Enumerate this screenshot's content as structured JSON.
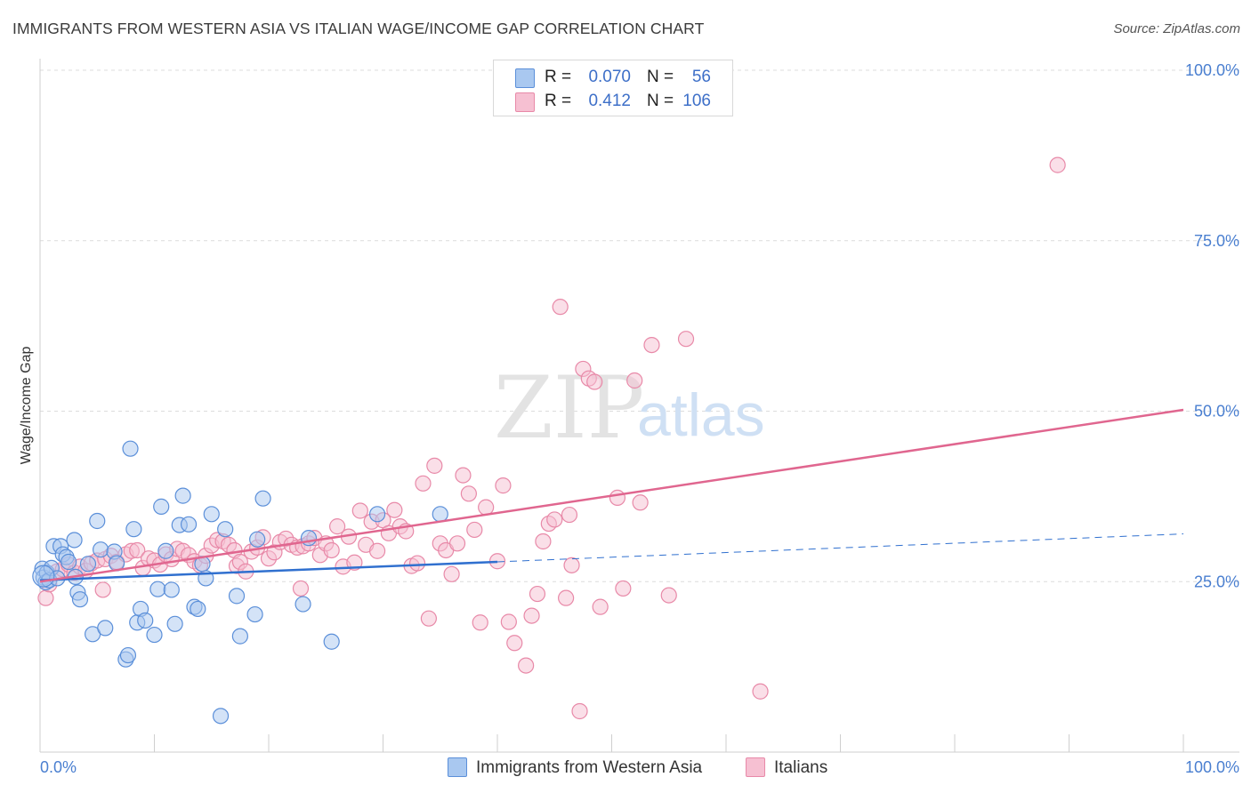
{
  "title": "IMMIGRANTS FROM WESTERN ASIA VS ITALIAN WAGE/INCOME GAP CORRELATION CHART",
  "source": "Source: ZipAtlas.com",
  "watermark": {
    "zip": "ZIP",
    "atlas": "atlas"
  },
  "legend": {
    "rows": [
      {
        "r_label": "R =",
        "r_value": "0.070",
        "n_label": "N =",
        "n_value": "56"
      },
      {
        "r_label": "R =",
        "r_value": "0.412",
        "n_label": "N =",
        "n_value": "106"
      }
    ]
  },
  "bottom_legend": [
    "Immigrants from Western Asia",
    "Italians"
  ],
  "colors": {
    "blue_fill": "#a9c8f0",
    "blue_stroke": "#5b8fd9",
    "blue_line": "#3070cf",
    "pink_fill": "#f6c0d2",
    "pink_stroke": "#e889a8",
    "pink_line": "#e0668f",
    "tick_text": "#4a7fd0",
    "grid": "#dcdcdc"
  },
  "chart_data": {
    "type": "scatter",
    "title": "IMMIGRANTS FROM WESTERN ASIA VS ITALIAN WAGE/INCOME GAP CORRELATION CHART",
    "xlabel": "",
    "ylabel": "Wage/Income Gap",
    "xlim": [
      0,
      100
    ],
    "ylim": [
      0,
      100
    ],
    "x_ticks": [
      "0.0%",
      "100.0%"
    ],
    "y_ticks": [
      "25.0%",
      "50.0%",
      "75.0%",
      "100.0%"
    ],
    "y_tick_values": [
      25,
      50,
      75,
      100
    ],
    "grid": "horizontal dashed",
    "legend_position": "top-center",
    "series": [
      {
        "name": "Immigrants from Western Asia",
        "r": 0.07,
        "n": 56,
        "trend": {
          "x0": 0,
          "y0": 25.2,
          "x1": 40,
          "y1": 27.9,
          "dashed_to_x": 100,
          "dashed_to_y": 32.0
        },
        "points": [
          [
            0.2,
            26.9
          ],
          [
            0.3,
            25.6
          ],
          [
            0.5,
            24.9
          ],
          [
            0.6,
            26.3
          ],
          [
            0.8,
            25.2
          ],
          [
            1.0,
            27.0
          ],
          [
            1.2,
            30.2
          ],
          [
            1.5,
            25.5
          ],
          [
            1.8,
            30.2
          ],
          [
            2.0,
            29.0
          ],
          [
            2.3,
            28.6
          ],
          [
            2.5,
            27.9
          ],
          [
            3.0,
            31.1
          ],
          [
            3.1,
            25.7
          ],
          [
            3.3,
            23.4
          ],
          [
            3.5,
            22.4
          ],
          [
            4.2,
            27.6
          ],
          [
            4.6,
            17.3
          ],
          [
            5.0,
            33.9
          ],
          [
            5.3,
            29.7
          ],
          [
            5.7,
            18.2
          ],
          [
            6.5,
            29.4
          ],
          [
            6.7,
            27.7
          ],
          [
            7.5,
            13.6
          ],
          [
            7.7,
            14.2
          ],
          [
            7.9,
            44.5
          ],
          [
            8.2,
            32.7
          ],
          [
            8.5,
            19.0
          ],
          [
            8.8,
            21.0
          ],
          [
            9.2,
            19.3
          ],
          [
            10.0,
            17.2
          ],
          [
            10.3,
            23.9
          ],
          [
            10.6,
            36.0
          ],
          [
            11.0,
            29.5
          ],
          [
            11.5,
            23.8
          ],
          [
            11.8,
            18.8
          ],
          [
            12.2,
            33.3
          ],
          [
            12.5,
            37.6
          ],
          [
            13.0,
            33.4
          ],
          [
            13.5,
            21.3
          ],
          [
            13.8,
            21.0
          ],
          [
            14.2,
            27.6
          ],
          [
            14.5,
            25.5
          ],
          [
            15.0,
            34.9
          ],
          [
            15.8,
            5.3
          ],
          [
            16.2,
            32.7
          ],
          [
            17.2,
            22.9
          ],
          [
            17.5,
            17.0
          ],
          [
            18.8,
            20.2
          ],
          [
            19.0,
            31.2
          ],
          [
            19.5,
            37.2
          ],
          [
            23.0,
            21.7
          ],
          [
            23.5,
            31.4
          ],
          [
            25.5,
            16.2
          ],
          [
            29.5,
            34.9
          ],
          [
            35.0,
            34.9
          ]
        ]
      },
      {
        "name": "Italians",
        "r": 0.412,
        "n": 106,
        "trend": {
          "x0": 0,
          "y0": 25.0,
          "x1": 100,
          "y1": 50.2
        },
        "points": [
          [
            0.5,
            22.6
          ],
          [
            0.8,
            24.6
          ],
          [
            1.5,
            26.5
          ],
          [
            2.0,
            26.8
          ],
          [
            2.5,
            27.5
          ],
          [
            3.0,
            26.3
          ],
          [
            3.5,
            27.2
          ],
          [
            4.0,
            26.6
          ],
          [
            4.5,
            27.7
          ],
          [
            5.0,
            28.1
          ],
          [
            5.5,
            23.8
          ],
          [
            5.7,
            28.3
          ],
          [
            6.2,
            28.8
          ],
          [
            6.7,
            27.9
          ],
          [
            7.5,
            29.0
          ],
          [
            8.0,
            29.5
          ],
          [
            8.5,
            29.6
          ],
          [
            9.0,
            27.0
          ],
          [
            9.5,
            28.4
          ],
          [
            10.0,
            28.1
          ],
          [
            10.5,
            27.5
          ],
          [
            11.0,
            29.0
          ],
          [
            11.5,
            28.3
          ],
          [
            12.0,
            29.8
          ],
          [
            12.5,
            29.5
          ],
          [
            13.0,
            28.9
          ],
          [
            13.5,
            28.0
          ],
          [
            14.0,
            27.4
          ],
          [
            14.5,
            28.8
          ],
          [
            15.0,
            30.3
          ],
          [
            15.5,
            31.1
          ],
          [
            16.0,
            30.9
          ],
          [
            16.5,
            30.4
          ],
          [
            17.0,
            29.6
          ],
          [
            17.2,
            27.3
          ],
          [
            17.5,
            27.9
          ],
          [
            18.0,
            26.5
          ],
          [
            18.5,
            29.4
          ],
          [
            19.0,
            30.0
          ],
          [
            19.5,
            31.5
          ],
          [
            20.0,
            28.4
          ],
          [
            20.5,
            29.3
          ],
          [
            21.0,
            30.8
          ],
          [
            21.5,
            31.3
          ],
          [
            22.0,
            30.4
          ],
          [
            22.5,
            30.0
          ],
          [
            22.8,
            24.0
          ],
          [
            23.0,
            30.2
          ],
          [
            23.5,
            30.6
          ],
          [
            24.0,
            31.4
          ],
          [
            24.5,
            28.9
          ],
          [
            25.0,
            30.6
          ],
          [
            25.5,
            29.6
          ],
          [
            26.0,
            33.1
          ],
          [
            26.5,
            27.2
          ],
          [
            27.0,
            31.6
          ],
          [
            27.5,
            27.8
          ],
          [
            28.0,
            35.4
          ],
          [
            28.5,
            30.4
          ],
          [
            29.0,
            33.8
          ],
          [
            29.5,
            29.5
          ],
          [
            30.0,
            34.0
          ],
          [
            30.5,
            32.1
          ],
          [
            31.0,
            35.5
          ],
          [
            31.5,
            33.1
          ],
          [
            32.0,
            32.4
          ],
          [
            32.5,
            27.3
          ],
          [
            33.0,
            27.7
          ],
          [
            33.5,
            39.4
          ],
          [
            34.0,
            19.6
          ],
          [
            34.5,
            42.0
          ],
          [
            35.0,
            30.6
          ],
          [
            35.5,
            29.6
          ],
          [
            36.0,
            26.1
          ],
          [
            36.5,
            30.6
          ],
          [
            37.0,
            40.6
          ],
          [
            37.5,
            37.9
          ],
          [
            38.0,
            32.6
          ],
          [
            38.5,
            19.0
          ],
          [
            39.0,
            35.9
          ],
          [
            40.0,
            28.0
          ],
          [
            40.5,
            39.1
          ],
          [
            41.0,
            19.1
          ],
          [
            41.5,
            16.0
          ],
          [
            42.5,
            12.7
          ],
          [
            43.0,
            20.0
          ],
          [
            43.5,
            23.2
          ],
          [
            44.0,
            30.9
          ],
          [
            44.5,
            33.5
          ],
          [
            45.0,
            34.1
          ],
          [
            45.5,
            65.3
          ],
          [
            46.0,
            22.6
          ],
          [
            46.5,
            27.4
          ],
          [
            47.2,
            6.0
          ],
          [
            47.5,
            56.2
          ],
          [
            48.0,
            54.8
          ],
          [
            48.5,
            54.3
          ],
          [
            49.0,
            21.3
          ],
          [
            50.5,
            37.3
          ],
          [
            51.0,
            24.0
          ],
          [
            52.0,
            54.5
          ],
          [
            52.5,
            36.6
          ],
          [
            53.5,
            59.7
          ],
          [
            55.0,
            23.0
          ],
          [
            56.5,
            60.6
          ],
          [
            63.0,
            8.9
          ],
          [
            89.0,
            86.1
          ],
          [
            46.3,
            34.8
          ]
        ]
      }
    ]
  }
}
